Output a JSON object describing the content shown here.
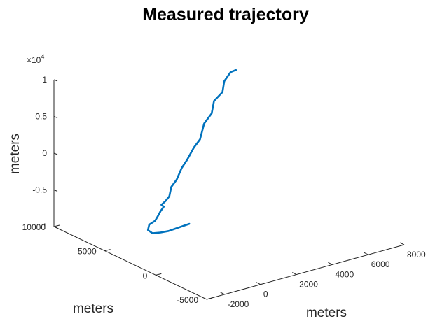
{
  "chart_data": {
    "type": "line",
    "title": "Measured trajectory",
    "xlabel": "meters",
    "ylabel": "meters",
    "zlabel": "meters",
    "x_axis": {
      "ticks": [
        "-2000",
        "0",
        "2000",
        "4000",
        "6000",
        "8000"
      ],
      "range": [
        -3000,
        8000
      ]
    },
    "y_axis": {
      "ticks": [
        "-5000",
        "0",
        "5000",
        "10000"
      ],
      "range": [
        -5000,
        10000
      ]
    },
    "z_axis": {
      "ticks": [
        "-1",
        "-0.5",
        "0",
        "0.5",
        "1"
      ],
      "exponent_label": "×10",
      "exponent": "4",
      "range": [
        -10000,
        10000
      ]
    },
    "grid": false,
    "color": "#0072BD",
    "series": [
      {
        "points": [
          {
            "x": 1700,
            "y": 5000,
            "z": -9500
          },
          {
            "x": 1100,
            "y": 5000,
            "z": -9600
          },
          {
            "x": 550,
            "y": 5000,
            "z": -9700
          },
          {
            "x": 100,
            "y": 5000,
            "z": -9600
          },
          {
            "x": -350,
            "y": 5000,
            "z": -9400
          },
          {
            "x": -600,
            "y": 5000,
            "z": -8800
          },
          {
            "x": -530,
            "y": 5000,
            "z": -8100
          },
          {
            "x": -200,
            "y": 5000,
            "z": -7800
          },
          {
            "x": 0,
            "y": 5000,
            "z": -7100
          },
          {
            "x": 100,
            "y": 5000,
            "z": -6700
          },
          {
            "x": 280,
            "y": 5000,
            "z": -6200
          },
          {
            "x": 150,
            "y": 5000,
            "z": -5850
          },
          {
            "x": 380,
            "y": 5000,
            "z": -5500
          },
          {
            "x": 590,
            "y": 5000,
            "z": -5000
          },
          {
            "x": 700,
            "y": 5000,
            "z": -3800
          },
          {
            "x": 1000,
            "y": 5000,
            "z": -3000
          },
          {
            "x": 1280,
            "y": 5000,
            "z": -1600
          },
          {
            "x": 1580,
            "y": 5000,
            "z": -700
          },
          {
            "x": 1950,
            "y": 5000,
            "z": 700
          },
          {
            "x": 2300,
            "y": 5000,
            "z": 1600
          },
          {
            "x": 2530,
            "y": 5000,
            "z": 3600
          },
          {
            "x": 2950,
            "y": 5000,
            "z": 4700
          },
          {
            "x": 3080,
            "y": 5000,
            "z": 6300
          },
          {
            "x": 3550,
            "y": 5000,
            "z": 7200
          },
          {
            "x": 3650,
            "y": 5000,
            "z": 8600
          },
          {
            "x": 4000,
            "y": 5000,
            "z": 9600
          },
          {
            "x": 4300,
            "y": 5000,
            "z": 9700
          }
        ]
      }
    ]
  }
}
